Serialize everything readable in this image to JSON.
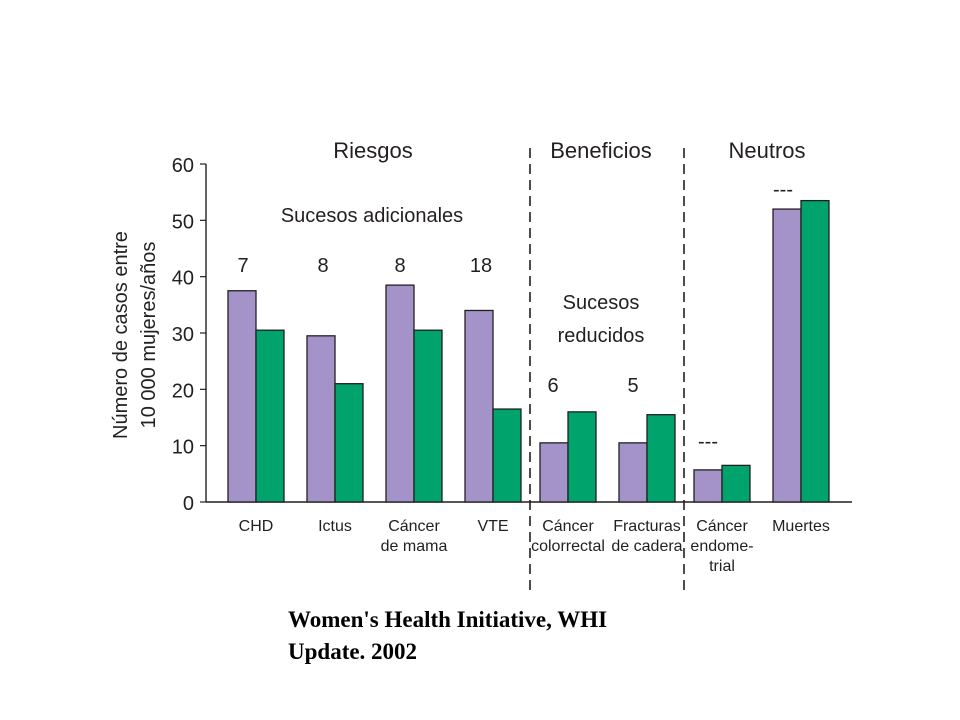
{
  "chart_data": {
    "type": "bar",
    "ylabel_lines": [
      "Número de casos entre",
      "10 000 mujeres/años"
    ],
    "ylim": [
      0,
      60
    ],
    "yticks": [
      0,
      10,
      20,
      30,
      40,
      50,
      60
    ],
    "categories": [
      [
        "CHD"
      ],
      [
        "Ictus"
      ],
      [
        "Cáncer",
        "de mama"
      ],
      [
        "VTE"
      ],
      [
        "Cáncer",
        "colorrectal"
      ],
      [
        "Fracturas",
        "de cadera"
      ],
      [
        "Cáncer",
        "endome-",
        "trial"
      ],
      [
        "Muertes"
      ]
    ],
    "series": [
      {
        "color": "#a393c8",
        "values": [
          37.5,
          29.5,
          38.5,
          34,
          10.5,
          10.5,
          5.7,
          52
        ]
      },
      {
        "color": "#00a36c",
        "values": [
          30.5,
          21,
          30.5,
          16.5,
          16,
          15.5,
          6.5,
          53.5
        ]
      }
    ],
    "differences": [
      "7",
      "8",
      "8",
      "18",
      "6",
      "5",
      "---",
      "---"
    ],
    "groups": [
      {
        "label": "Riesgos",
        "sublabel_lines": [
          "Sucesos adicionales"
        ]
      },
      {
        "label": "Beneficios",
        "sublabel_lines": [
          "Sucesos",
          "reducidos"
        ]
      },
      {
        "label": "Neutros",
        "sublabel_lines": []
      }
    ],
    "grid": false,
    "legend": "none"
  },
  "caption": {
    "line1": "Women's Health Initiative, WHI",
    "line2": "Update. 2002"
  }
}
